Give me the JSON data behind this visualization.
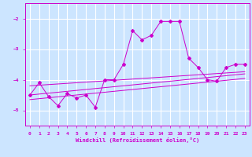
{
  "xlabel": "Windchill (Refroidissement éolien,°C)",
  "background_color": "#cce5ff",
  "grid_color": "#ffffff",
  "line_color": "#cc00cc",
  "xlim": [
    -0.5,
    23.5
  ],
  "ylim": [
    -5.5,
    -1.5
  ],
  "yticks": [
    -5,
    -4,
    -3,
    -2
  ],
  "xticks": [
    0,
    1,
    2,
    3,
    4,
    5,
    6,
    7,
    8,
    9,
    10,
    11,
    12,
    13,
    14,
    15,
    16,
    17,
    18,
    19,
    20,
    21,
    22,
    23
  ],
  "y_main": [
    -4.5,
    -4.1,
    -4.55,
    -4.85,
    -4.45,
    -4.6,
    -4.5,
    -4.9,
    -4.0,
    -4.0,
    -3.5,
    -2.4,
    -2.7,
    -2.55,
    -2.1,
    -2.1,
    -2.1,
    -3.3,
    -3.6,
    -4.0,
    -4.05,
    -3.6,
    -3.5,
    -3.5
  ],
  "y_trend1": [
    -4.2,
    -4.18,
    -4.16,
    -4.14,
    -4.12,
    -4.1,
    -4.08,
    -4.06,
    -4.04,
    -4.02,
    -4.0,
    -3.98,
    -3.96,
    -3.94,
    -3.92,
    -3.9,
    -3.88,
    -3.86,
    -3.84,
    -3.82,
    -3.8,
    -3.78,
    -3.76,
    -3.74
  ],
  "y_trend2": [
    -4.5,
    -4.47,
    -4.44,
    -4.41,
    -4.38,
    -4.35,
    -4.32,
    -4.29,
    -4.26,
    -4.23,
    -4.2,
    -4.17,
    -4.14,
    -4.11,
    -4.08,
    -4.05,
    -4.02,
    -3.99,
    -3.96,
    -3.93,
    -3.9,
    -3.87,
    -3.84,
    -3.81
  ],
  "y_trend3": [
    -4.65,
    -4.62,
    -4.59,
    -4.56,
    -4.53,
    -4.5,
    -4.47,
    -4.44,
    -4.41,
    -4.38,
    -4.35,
    -4.32,
    -4.29,
    -4.26,
    -4.23,
    -4.2,
    -4.17,
    -4.14,
    -4.11,
    -4.08,
    -4.05,
    -4.02,
    -3.99,
    -3.96
  ]
}
